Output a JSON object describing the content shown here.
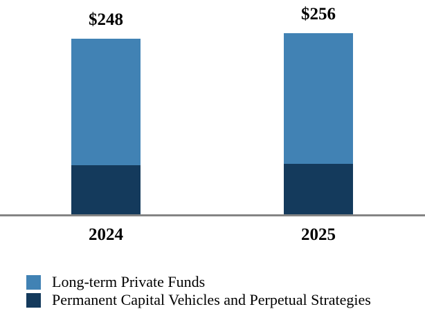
{
  "chart_data": {
    "type": "bar",
    "stacked": true,
    "title": "",
    "xlabel": "",
    "ylabel": "",
    "grid": false,
    "legend_position": "bottom-left",
    "categories": [
      "2024",
      "2025"
    ],
    "series": [
      {
        "name": "Long-term Private Funds",
        "color": "#4182B4",
        "values": [
          178,
          184
        ]
      },
      {
        "name": "Permanent Capital Vehicles and Perpetual Strategies",
        "color": "#143A5C",
        "values": [
          70,
          72
        ]
      }
    ],
    "totals": [
      248,
      256
    ],
    "total_labels": [
      "$248",
      "$256"
    ],
    "ylim": [
      0,
      270
    ]
  },
  "colors": {
    "background": "#FFFFFF",
    "axis_line": "#848484",
    "text": "#000000"
  }
}
